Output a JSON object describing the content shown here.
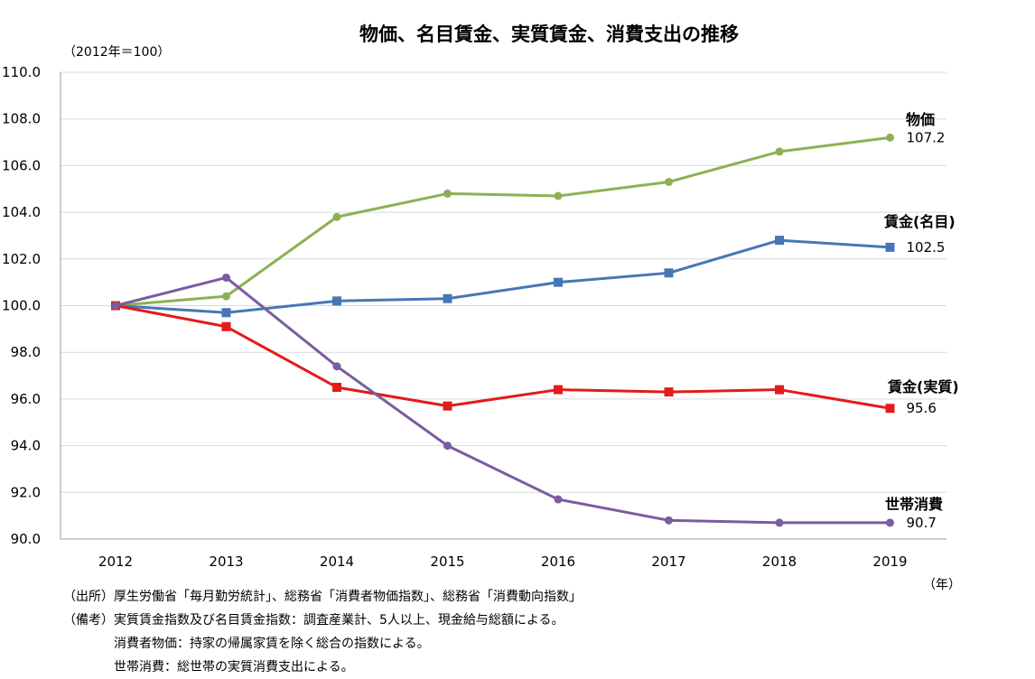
{
  "chart_data": {
    "type": "line",
    "title": "物価、名目賃金、実質賃金、消費支出の推移",
    "y_unit_label": "（2012年＝100）",
    "x_unit_label": "（年）",
    "categories": [
      "2012",
      "2013",
      "2014",
      "2015",
      "2016",
      "2017",
      "2018",
      "2019"
    ],
    "ylim": [
      90,
      110
    ],
    "y_ticks": [
      "90.0",
      "92.0",
      "94.0",
      "96.0",
      "98.0",
      "100.0",
      "102.0",
      "104.0",
      "106.0",
      "108.0",
      "110.0"
    ],
    "grid": true,
    "series": [
      {
        "name": "物価",
        "values": [
          100.0,
          100.4,
          103.8,
          104.8,
          104.7,
          105.3,
          106.6,
          107.2
        ],
        "end_label": "107.2",
        "color": "#8db152",
        "marker": "circle"
      },
      {
        "name": "賃金(名目)",
        "values": [
          100.0,
          99.7,
          100.2,
          100.3,
          101.0,
          101.4,
          102.8,
          102.5
        ],
        "end_label": "102.5",
        "color": "#4677b4",
        "marker": "square"
      },
      {
        "name": "賃金(実質)",
        "values": [
          100.0,
          99.1,
          96.5,
          95.7,
          96.4,
          96.3,
          96.4,
          95.6
        ],
        "end_label": "95.6",
        "color": "#e31b1b",
        "marker": "square"
      },
      {
        "name": "世帯消費",
        "values": [
          100.0,
          101.2,
          97.4,
          94.0,
          91.7,
          90.8,
          90.7,
          90.7
        ],
        "end_label": "90.7",
        "color": "#7a5ca1",
        "marker": "circle"
      }
    ]
  },
  "notes": {
    "source": "（出所）厚生労働省「毎月勤労統計」、総務省「消費者物価指数」、総務省「消費動向指数」",
    "remark_1": "（備考）実質賃金指数及び名目賃金指数：調査産業計、5人以上、現金給与総額による。",
    "remark_2": "消費者物価：持家の帰属家賃を除く総合の指数による。",
    "remark_3": "世帯消費：総世帯の実質消費支出による。"
  }
}
